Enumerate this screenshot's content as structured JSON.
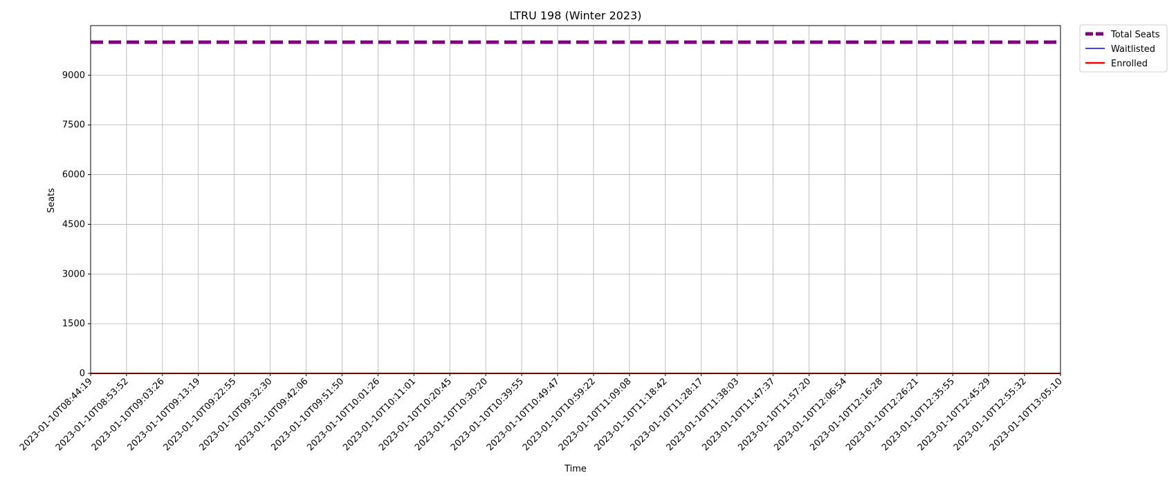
{
  "chart_data": {
    "type": "line",
    "title": "LTRU 198 (Winter 2023)",
    "xlabel": "Time",
    "ylabel": "Seats",
    "ylim": [
      0,
      10500
    ],
    "y_ticks": [
      0,
      1500,
      3000,
      4500,
      6000,
      7500,
      9000
    ],
    "x_ticks": [
      "2023-01-10T08:44:19",
      "2023-01-10T08:53:52",
      "2023-01-10T09:03:26",
      "2023-01-10T09:13:19",
      "2023-01-10T09:22:55",
      "2023-01-10T09:32:30",
      "2023-01-10T09:42:06",
      "2023-01-10T09:51:50",
      "2023-01-10T10:01:26",
      "2023-01-10T10:11:01",
      "2023-01-10T10:20:45",
      "2023-01-10T10:30:20",
      "2023-01-10T10:39:55",
      "2023-01-10T10:49:47",
      "2023-01-10T10:59:22",
      "2023-01-10T11:09:08",
      "2023-01-10T11:18:42",
      "2023-01-10T11:28:17",
      "2023-01-10T11:38:03",
      "2023-01-10T11:47:37",
      "2023-01-10T11:57:20",
      "2023-01-10T12:06:54",
      "2023-01-10T12:16:28",
      "2023-01-10T12:26:21",
      "2023-01-10T12:35:55",
      "2023-01-10T12:45:29",
      "2023-01-10T12:55:32",
      "2023-01-10T13:05:10"
    ],
    "grid": true,
    "legend_position": "outside-top-right",
    "series": [
      {
        "name": "Total Seats",
        "color": "#800080",
        "style": "dashed",
        "values": [
          9999,
          9999,
          9999,
          9999,
          9999,
          9999,
          9999,
          9999,
          9999,
          9999,
          9999,
          9999,
          9999,
          9999,
          9999,
          9999,
          9999,
          9999,
          9999,
          9999,
          9999,
          9999,
          9999,
          9999,
          9999,
          9999,
          9999,
          9999
        ]
      },
      {
        "name": "Waitlisted",
        "color": "#0000ff",
        "style": "solid",
        "values": [
          0,
          0,
          0,
          0,
          0,
          0,
          0,
          0,
          0,
          0,
          0,
          0,
          0,
          0,
          0,
          0,
          0,
          0,
          0,
          0,
          0,
          0,
          0,
          0,
          0,
          0,
          0,
          0
        ]
      },
      {
        "name": "Enrolled",
        "color": "#ff0000",
        "style": "solid",
        "values": [
          0,
          0,
          0,
          0,
          0,
          0,
          0,
          0,
          0,
          0,
          0,
          0,
          0,
          0,
          0,
          0,
          0,
          0,
          0,
          0,
          0,
          0,
          0,
          0,
          0,
          0,
          0,
          0
        ]
      }
    ]
  }
}
